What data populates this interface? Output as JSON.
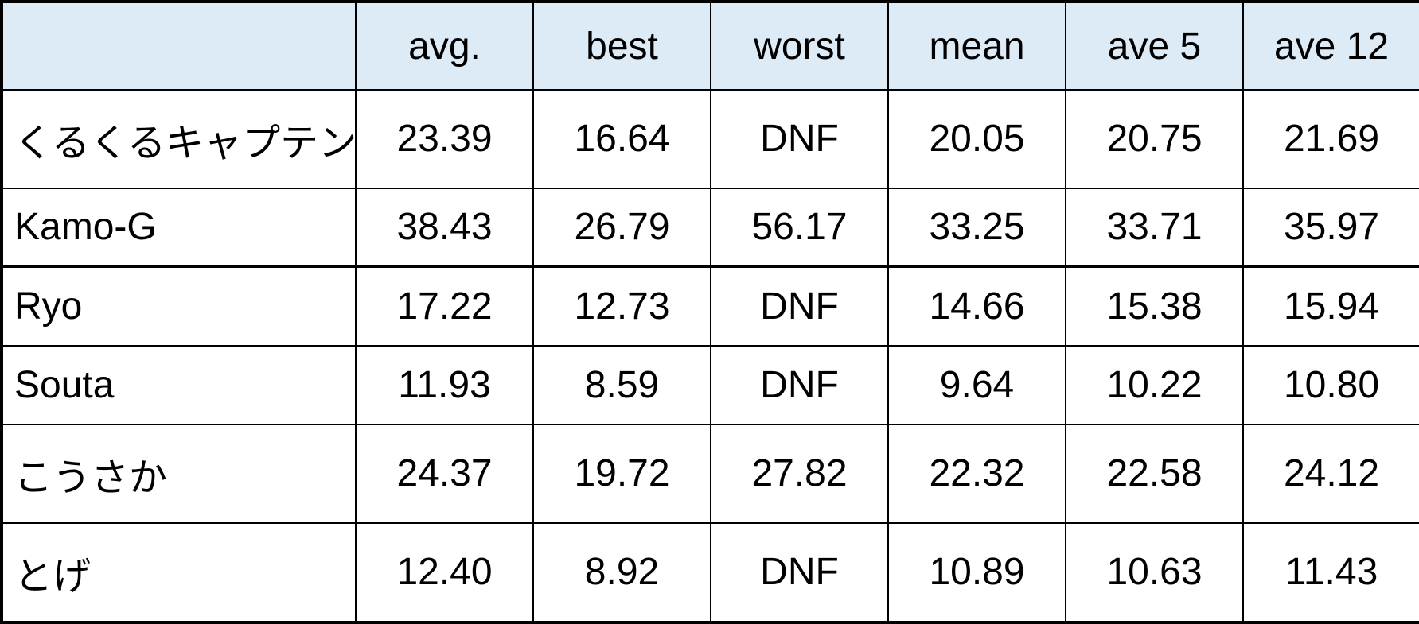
{
  "colors": {
    "header_bg": "#ddebf7",
    "border": "#000000",
    "text": "#000000"
  },
  "chart_data": {
    "type": "table",
    "columns": [
      "",
      "avg.",
      "best",
      "worst",
      "mean",
      "ave 5",
      "ave 12"
    ],
    "rows": [
      [
        "くるくるキャプテン",
        "23.39",
        "16.64",
        "DNF",
        "20.05",
        "20.75",
        "21.69"
      ],
      [
        "Kamo-G",
        "38.43",
        "26.79",
        "56.17",
        "33.25",
        "33.71",
        "35.97"
      ],
      [
        "Ryo",
        "17.22",
        "12.73",
        "DNF",
        "14.66",
        "15.38",
        "15.94"
      ],
      [
        "Souta",
        "11.93",
        "8.59",
        "DNF",
        "9.64",
        "10.22",
        "10.80"
      ],
      [
        "こうさか",
        "24.37",
        "19.72",
        "27.82",
        "22.32",
        "22.58",
        "24.12"
      ],
      [
        "とげ",
        "12.40",
        "8.92",
        "DNF",
        "10.89",
        "10.63",
        "11.43"
      ]
    ],
    "layout": {
      "header_fill": "#ddebf7",
      "grid": "on",
      "first_column_align": "left",
      "value_align": "center"
    }
  }
}
